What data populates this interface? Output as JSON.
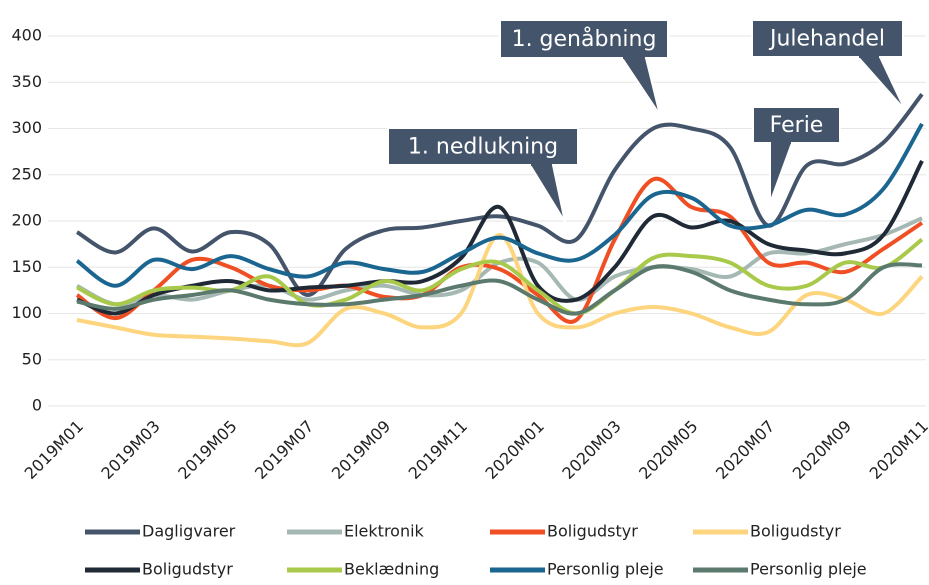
{
  "chart_data": {
    "type": "line",
    "categories": [
      "2019M01",
      null,
      "2019M03",
      null,
      "2019M05",
      null,
      "2019M07",
      null,
      "2019M09",
      null,
      "2019M11",
      null,
      "2020M01",
      null,
      "2020M03",
      null,
      "2020M05",
      null,
      "2020M07",
      null,
      "2020M09",
      null,
      "2020M11"
    ],
    "series": [
      {
        "name": "Dagligvarer",
        "color": "#44546a",
        "values": [
          188,
          166,
          192,
          167,
          188,
          175,
          120,
          170,
          190,
          193,
          200,
          205,
          195,
          180,
          255,
          300,
          300,
          280,
          195,
          260,
          262,
          285,
          337
        ]
      },
      {
        "name": "Elektronik",
        "color": "#a5b8b4",
        "values": [
          130,
          110,
          120,
          115,
          125,
          130,
          115,
          125,
          130,
          120,
          125,
          155,
          155,
          115,
          140,
          150,
          148,
          140,
          165,
          165,
          175,
          185,
          203
        ]
      },
      {
        "name": "Boligudstyr",
        "color": "#f04e23",
        "values": [
          120,
          95,
          125,
          158,
          150,
          130,
          125,
          130,
          118,
          120,
          150,
          148,
          120,
          93,
          180,
          245,
          215,
          205,
          155,
          155,
          145,
          170,
          198
        ]
      },
      {
        "name": "Boligudstyr",
        "color": "#fdd57e",
        "values": [
          93,
          85,
          77,
          75,
          73,
          70,
          68,
          105,
          100,
          85,
          100,
          185,
          100,
          85,
          100,
          107,
          100,
          85,
          80,
          120,
          115,
          100,
          140
        ]
      },
      {
        "name": "Boligudstyr",
        "color": "#1f2a36",
        "values": [
          115,
          100,
          120,
          130,
          135,
          125,
          128,
          130,
          135,
          135,
          160,
          215,
          130,
          115,
          150,
          205,
          193,
          200,
          175,
          168,
          165,
          185,
          265
        ]
      },
      {
        "name": "Beklædning",
        "color": "#a8c94a",
        "values": [
          128,
          110,
          125,
          128,
          125,
          140,
          110,
          115,
          135,
          125,
          148,
          155,
          125,
          100,
          125,
          160,
          162,
          155,
          130,
          130,
          155,
          150,
          180
        ]
      },
      {
        "name": "Personlig pleje",
        "color": "#1a6690",
        "values": [
          157,
          130,
          158,
          148,
          162,
          148,
          140,
          155,
          148,
          145,
          165,
          182,
          165,
          158,
          185,
          228,
          225,
          195,
          195,
          212,
          207,
          235,
          305
        ]
      },
      {
        "name": "Personlig pleje",
        "color": "#5b7a6d",
        "values": [
          113,
          105,
          115,
          120,
          125,
          115,
          110,
          110,
          115,
          120,
          130,
          135,
          115,
          100,
          125,
          150,
          145,
          125,
          115,
          110,
          115,
          150,
          152
        ]
      }
    ],
    "annotations": [
      "1. nedlukning",
      "1. genåbning",
      "Ferie",
      "Julehandel"
    ],
    "ylim": [
      0,
      400
    ],
    "yticks": [
      0,
      50,
      100,
      150,
      200,
      250,
      300,
      350,
      400
    ],
    "grid": true
  }
}
